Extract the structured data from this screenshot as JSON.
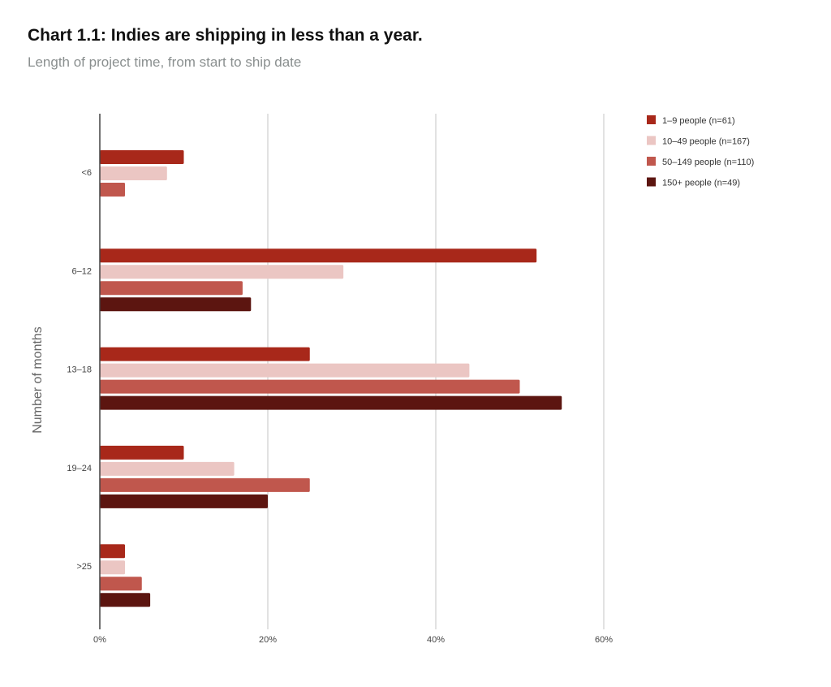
{
  "chart_data": {
    "type": "bar",
    "orientation": "horizontal",
    "title": "Chart 1.1: Indies are shipping in less than a year.",
    "subtitle": "Length of project time, from start to ship date",
    "ylabel": "Number of months",
    "xlabel": "",
    "categories": [
      "<6",
      "6–12",
      "13–18",
      "19–24",
      ">25"
    ],
    "xlim": [
      0,
      60
    ],
    "xticks": [
      "0%",
      "20%",
      "40%",
      "60%"
    ],
    "xtick_values": [
      0,
      20,
      40,
      60
    ],
    "grid": true,
    "legend_position": "top-right",
    "series": [
      {
        "name": "1–9 people (n=61)",
        "color": "#A8281A",
        "values": [
          10,
          52,
          25,
          10,
          3
        ]
      },
      {
        "name": "10–49 people (n=167)",
        "color": "#EBC6C3",
        "values": [
          8,
          29,
          44,
          16,
          3
        ]
      },
      {
        "name": "50–149 people (n=110)",
        "color": "#C0574D",
        "values": [
          3,
          17,
          50,
          25,
          5
        ]
      },
      {
        "name": "150+ people (n=49)",
        "color": "#5C1510",
        "values": [
          0,
          18,
          55,
          20,
          6
        ]
      }
    ]
  }
}
